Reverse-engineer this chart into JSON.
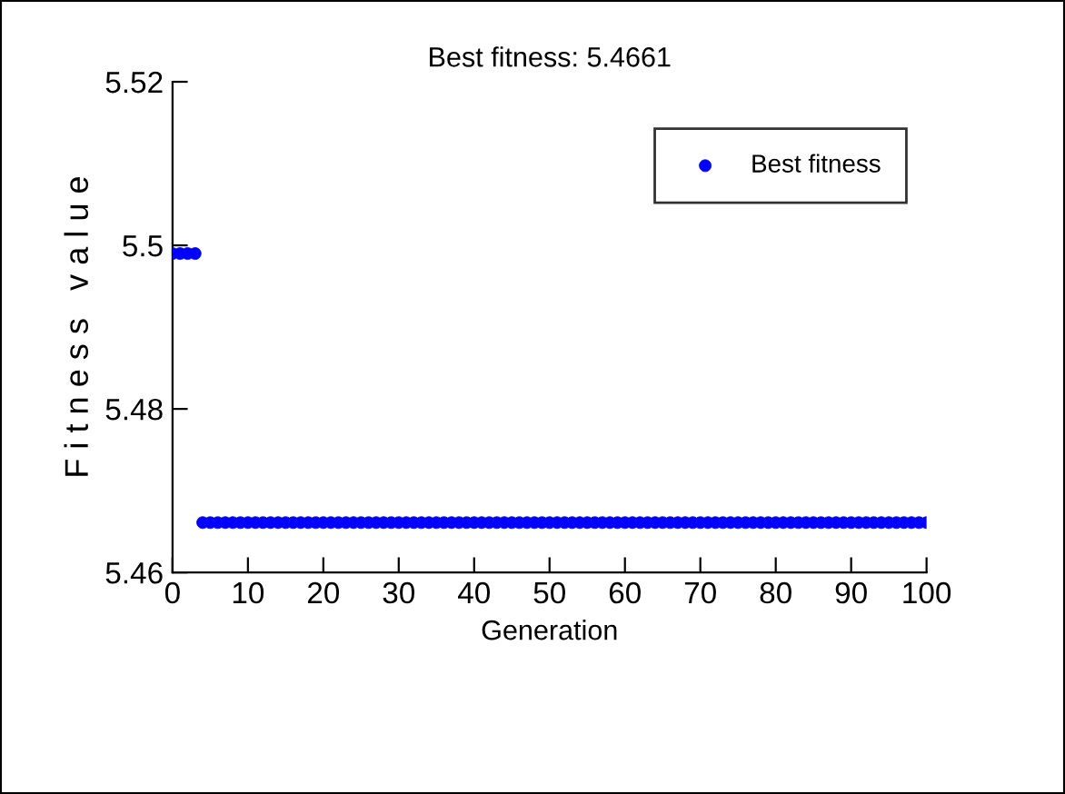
{
  "chart_data": {
    "type": "scatter",
    "title": "Best fitness: 5.4661",
    "xlabel": "Generation",
    "ylabel": "F i t n e s s   v a l u e",
    "x": [
      0,
      1,
      2,
      3,
      4,
      5,
      6,
      7,
      8,
      9,
      10,
      11,
      12,
      13,
      14,
      15,
      16,
      17,
      18,
      19,
      20,
      21,
      22,
      23,
      24,
      25,
      26,
      27,
      28,
      29,
      30,
      31,
      32,
      33,
      34,
      35,
      36,
      37,
      38,
      39,
      40,
      41,
      42,
      43,
      44,
      45,
      46,
      47,
      48,
      49,
      50,
      51,
      52,
      53,
      54,
      55,
      56,
      57,
      58,
      59,
      60,
      61,
      62,
      63,
      64,
      65,
      66,
      67,
      68,
      69,
      70,
      71,
      72,
      73,
      74,
      75,
      76,
      77,
      78,
      79,
      80,
      81,
      82,
      83,
      84,
      85,
      86,
      87,
      88,
      89,
      90,
      91,
      92,
      93,
      94,
      95,
      96,
      97,
      98,
      99,
      100
    ],
    "series": [
      {
        "name": "Best fitness",
        "color": "#0000ff",
        "values": [
          5.499,
          5.499,
          5.499,
          5.499,
          5.4661,
          5.4661,
          5.4661,
          5.4661,
          5.4661,
          5.4661,
          5.4661,
          5.4661,
          5.4661,
          5.4661,
          5.4661,
          5.4661,
          5.4661,
          5.4661,
          5.4661,
          5.4661,
          5.4661,
          5.4661,
          5.4661,
          5.4661,
          5.4661,
          5.4661,
          5.4661,
          5.4661,
          5.4661,
          5.4661,
          5.4661,
          5.4661,
          5.4661,
          5.4661,
          5.4661,
          5.4661,
          5.4661,
          5.4661,
          5.4661,
          5.4661,
          5.4661,
          5.4661,
          5.4661,
          5.4661,
          5.4661,
          5.4661,
          5.4661,
          5.4661,
          5.4661,
          5.4661,
          5.4661,
          5.4661,
          5.4661,
          5.4661,
          5.4661,
          5.4661,
          5.4661,
          5.4661,
          5.4661,
          5.4661,
          5.4661,
          5.4661,
          5.4661,
          5.4661,
          5.4661,
          5.4661,
          5.4661,
          5.4661,
          5.4661,
          5.4661,
          5.4661,
          5.4661,
          5.4661,
          5.4661,
          5.4661,
          5.4661,
          5.4661,
          5.4661,
          5.4661,
          5.4661,
          5.4661,
          5.4661,
          5.4661,
          5.4661,
          5.4661,
          5.4661,
          5.4661,
          5.4661,
          5.4661,
          5.4661,
          5.4661,
          5.4661,
          5.4661,
          5.4661,
          5.4661,
          5.4661,
          5.4661,
          5.4661,
          5.4661,
          5.4661,
          5.4661
        ]
      }
    ],
    "xlim": [
      0,
      100
    ],
    "xticks": [
      0,
      10,
      20,
      30,
      40,
      50,
      60,
      70,
      80,
      90,
      100
    ],
    "ylim": [
      5.46,
      5.52
    ],
    "yticks": [
      5.46,
      5.48,
      5.5,
      5.52
    ],
    "marker": "circle",
    "legend": "top right",
    "grid": false
  }
}
